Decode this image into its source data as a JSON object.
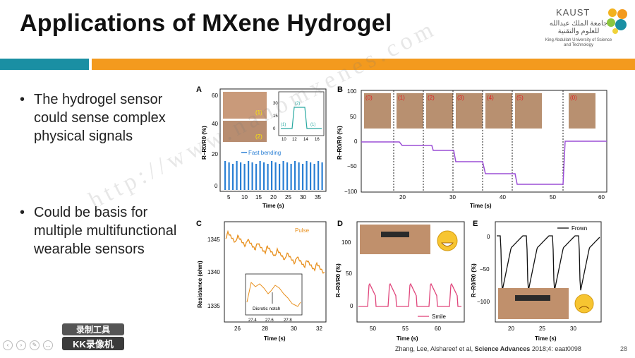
{
  "slide": {
    "title": "Applications of MXene Hydrogel",
    "bullets": [
      "The hydrogel sensor could sense complex physical signals",
      "Could be basis for multiple multifunctional wearable sensors"
    ],
    "citation_prefix": "Zhang, Lee, Alshareef et al,",
    "citation_journal": "Science Advances",
    "citation_suffix": "2018;4: eaat0098",
    "page_number": "28",
    "watermark": "http://www.nanomxenes.com"
  },
  "logo": {
    "name": "KAUST",
    "arabic": "جامعة الملك عبدالله للعلوم والتقنية",
    "english": "King Abdullah University of Science and Technology"
  },
  "recorder_overlay": {
    "line1": "录制工具",
    "line2": "KK录像机"
  },
  "colors": {
    "teal": "#1a8fa3",
    "orange": "#f39a1e",
    "blue_trace": "#2a7fd4",
    "purple_trace": "#9b4fd6",
    "pulse_trace": "#e8901e",
    "smile_trace": "#e0457b",
    "frown_trace": "#111111"
  },
  "panels": {
    "A": {
      "label": "A",
      "ylabel": "R−R0/R0 (%)",
      "xlabel": "Time (s)",
      "xticks": [
        "5",
        "10",
        "15",
        "20",
        "25",
        "30",
        "35"
      ],
      "yticks": [
        "0",
        "20",
        "40",
        "60"
      ],
      "legend": "Fast bending",
      "photo_tags": [
        "(1)",
        "(2)"
      ],
      "inset": {
        "xticks": [
          "10",
          "12",
          "14",
          "16"
        ],
        "yticks": [
          "0",
          "15",
          "30"
        ],
        "labels": [
          "(1)",
          "(2)",
          "(1)"
        ]
      }
    },
    "B": {
      "label": "B",
      "ylabel": "R−R0/R0 (%)",
      "xlabel": "Time (s)",
      "xticks": [
        "20",
        "30",
        "40",
        "50",
        "60"
      ],
      "yticks": [
        "100",
        "50",
        "0",
        "−50",
        "−100"
      ],
      "photo_tags": [
        "(0)",
        "(1)",
        "(2)",
        "(3)",
        "(4)",
        "(5)",
        "(0)"
      ]
    },
    "C": {
      "label": "C",
      "ylabel": "Resistance (ohm)",
      "xlabel": "Time (s)",
      "xticks": [
        "26",
        "28",
        "30",
        "32"
      ],
      "yticks": [
        "1345",
        "1340",
        "1335"
      ],
      "legend": "Pulse",
      "inset": {
        "xticks": [
          "27.4",
          "27.6",
          "27.8"
        ],
        "label": "Dicrotic notch"
      }
    },
    "D": {
      "label": "D",
      "ylabel": "R−R0/R0 (%)",
      "xlabel": "Time (s)",
      "xticks": [
        "50",
        "55",
        "60"
      ],
      "yticks": [
        "100",
        "50",
        "0"
      ],
      "legend": "Smile"
    },
    "E": {
      "label": "E",
      "ylabel": "R−R0/R0 (%)",
      "xlabel": "Time (s)",
      "xticks": [
        "20",
        "25",
        "30"
      ],
      "yticks": [
        "0",
        "−50",
        "−100"
      ],
      "legend": "Frown"
    }
  }
}
